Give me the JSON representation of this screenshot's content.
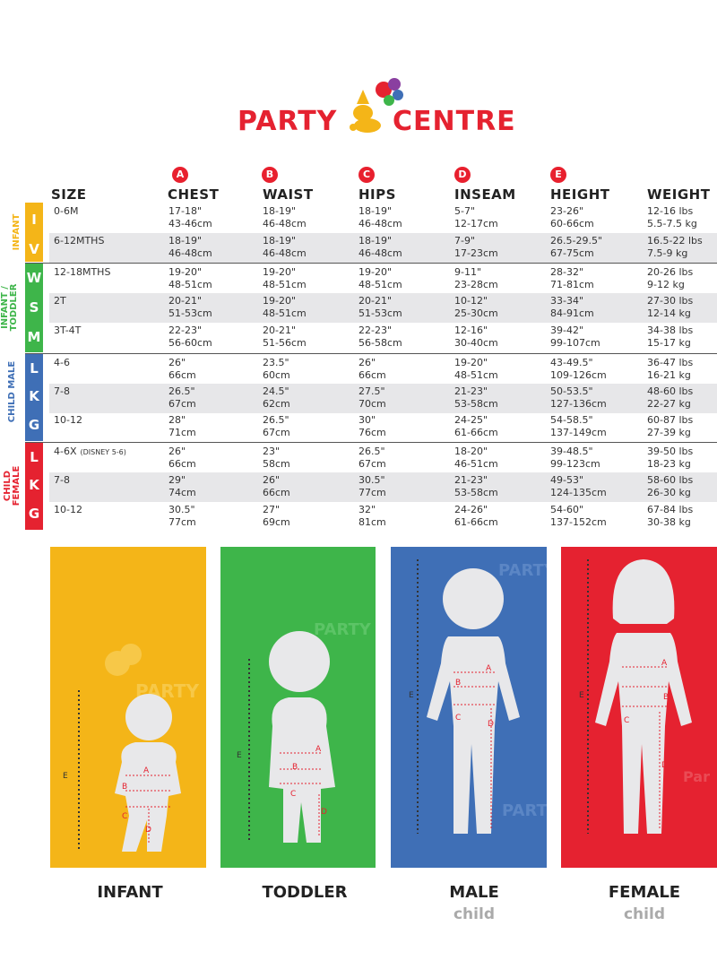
{
  "brand": {
    "name_left": "PARTY",
    "name_right": "CENTRE",
    "color": "#e52230"
  },
  "columns": [
    {
      "letter": "",
      "label": "SIZE"
    },
    {
      "letter": "A",
      "label": "CHEST"
    },
    {
      "letter": "B",
      "label": "WAIST"
    },
    {
      "letter": "C",
      "label": "HIPS"
    },
    {
      "letter": "D",
      "label": "INSEAM"
    },
    {
      "letter": "E",
      "label": "HEIGHT"
    },
    {
      "letter": "",
      "label": "WEIGHT"
    }
  ],
  "groups": [
    {
      "label": "INFANT",
      "color": "#f4b518",
      "sizes": [
        "I",
        "V"
      ]
    },
    {
      "label": "INFANT / TODDLER",
      "color": "#3eb54a",
      "sizes": [
        "W",
        "S",
        "M"
      ]
    },
    {
      "label": "CHILD MALE",
      "color": "#3f6fb6",
      "sizes": [
        "L",
        "K",
        "G"
      ]
    },
    {
      "label": "CHILD FEMALE",
      "color": "#e52230",
      "sizes": [
        "L",
        "K",
        "G"
      ]
    }
  ],
  "rows": [
    {
      "size": "0-6M",
      "size_note": "",
      "chest": [
        "17-18\"",
        "43-46cm"
      ],
      "waist": [
        "18-19\"",
        "46-48cm"
      ],
      "hips": [
        "18-19\"",
        "46-48cm"
      ],
      "inseam": [
        "5-7\"",
        "12-17cm"
      ],
      "height": [
        "23-26\"",
        "60-66cm"
      ],
      "weight": [
        "12-16 lbs",
        "5.5-7.5 kg"
      ]
    },
    {
      "size": "6-12MTHS",
      "size_note": "",
      "chest": [
        "18-19\"",
        "46-48cm"
      ],
      "waist": [
        "18-19\"",
        "46-48cm"
      ],
      "hips": [
        "18-19\"",
        "46-48cm"
      ],
      "inseam": [
        "7-9\"",
        "17-23cm"
      ],
      "height": [
        "26.5-29.5\"",
        "67-75cm"
      ],
      "weight": [
        "16.5-22 lbs",
        "7.5-9 kg"
      ]
    },
    {
      "size": "12-18MTHS",
      "size_note": "",
      "chest": [
        "19-20\"",
        "48-51cm"
      ],
      "waist": [
        "19-20\"",
        "48-51cm"
      ],
      "hips": [
        "19-20\"",
        "48-51cm"
      ],
      "inseam": [
        "9-11\"",
        "23-28cm"
      ],
      "height": [
        "28-32\"",
        "71-81cm"
      ],
      "weight": [
        "20-26 lbs",
        "9-12 kg"
      ]
    },
    {
      "size": "2T",
      "size_note": "",
      "chest": [
        "20-21\"",
        "51-53cm"
      ],
      "waist": [
        "19-20\"",
        "48-51cm"
      ],
      "hips": [
        "20-21\"",
        "51-53cm"
      ],
      "inseam": [
        "10-12\"",
        "25-30cm"
      ],
      "height": [
        "33-34\"",
        "84-91cm"
      ],
      "weight": [
        "27-30 lbs",
        "12-14 kg"
      ]
    },
    {
      "size": "3T-4T",
      "size_note": "",
      "chest": [
        "22-23\"",
        "56-60cm"
      ],
      "waist": [
        "20-21\"",
        "51-56cm"
      ],
      "hips": [
        "22-23\"",
        "56-58cm"
      ],
      "inseam": [
        "12-16\"",
        "30-40cm"
      ],
      "height": [
        "39-42\"",
        "99-107cm"
      ],
      "weight": [
        "34-38 lbs",
        "15-17 kg"
      ]
    },
    {
      "size": "4-6",
      "size_note": "",
      "chest": [
        "26\"",
        "66cm"
      ],
      "waist": [
        "23.5\"",
        "60cm"
      ],
      "hips": [
        "26\"",
        "66cm"
      ],
      "inseam": [
        "19-20\"",
        "48-51cm"
      ],
      "height": [
        "43-49.5\"",
        "109-126cm"
      ],
      "weight": [
        "36-47 lbs",
        "16-21 kg"
      ]
    },
    {
      "size": "7-8",
      "size_note": "",
      "chest": [
        "26.5\"",
        "67cm"
      ],
      "waist": [
        "24.5\"",
        "62cm"
      ],
      "hips": [
        "27.5\"",
        "70cm"
      ],
      "inseam": [
        "21-23\"",
        "53-58cm"
      ],
      "height": [
        "50-53.5\"",
        "127-136cm"
      ],
      "weight": [
        "48-60 lbs",
        "22-27 kg"
      ]
    },
    {
      "size": "10-12",
      "size_note": "",
      "chest": [
        "28\"",
        "71cm"
      ],
      "waist": [
        "26.5\"",
        "67cm"
      ],
      "hips": [
        "30\"",
        "76cm"
      ],
      "inseam": [
        "24-25\"",
        "61-66cm"
      ],
      "height": [
        "54-58.5\"",
        "137-149cm"
      ],
      "weight": [
        "60-87 lbs",
        "27-39 kg"
      ]
    },
    {
      "size": "4-6X",
      "size_note": "(DISNEY 5-6)",
      "chest": [
        "26\"",
        "66cm"
      ],
      "waist": [
        "23\"",
        "58cm"
      ],
      "hips": [
        "26.5\"",
        "67cm"
      ],
      "inseam": [
        "18-20\"",
        "46-51cm"
      ],
      "height": [
        "39-48.5\"",
        "99-123cm"
      ],
      "weight": [
        "39-50 lbs",
        "18-23 kg"
      ]
    },
    {
      "size": "7-8",
      "size_note": "",
      "chest": [
        "29\"",
        "74cm"
      ],
      "waist": [
        "26\"",
        "66cm"
      ],
      "hips": [
        "30.5\"",
        "77cm"
      ],
      "inseam": [
        "21-23\"",
        "53-58cm"
      ],
      "height": [
        "49-53\"",
        "124-135cm"
      ],
      "weight": [
        "58-60 lbs",
        "26-30 kg"
      ]
    },
    {
      "size": "10-12",
      "size_note": "",
      "chest": [
        "30.5\"",
        "77cm"
      ],
      "waist": [
        "27\"",
        "69cm"
      ],
      "hips": [
        "32\"",
        "81cm"
      ],
      "inseam": [
        "24-26\"",
        "61-66cm"
      ],
      "height": [
        "54-60\"",
        "137-152cm"
      ],
      "weight": [
        "67-84 lbs",
        "30-38 kg"
      ]
    }
  ],
  "figures": [
    {
      "label": "INFANT",
      "sub": "",
      "color": "#f4b518"
    },
    {
      "label": "TODDLER",
      "sub": "",
      "color": "#3eb54a"
    },
    {
      "label": "MALE",
      "sub": "child",
      "color": "#3f6fb6"
    },
    {
      "label": "FEMALE",
      "sub": "child",
      "color": "#e52230"
    }
  ],
  "figure_marks": {
    "a": "A",
    "b": "B",
    "c": "C",
    "d": "D",
    "e": "E"
  }
}
